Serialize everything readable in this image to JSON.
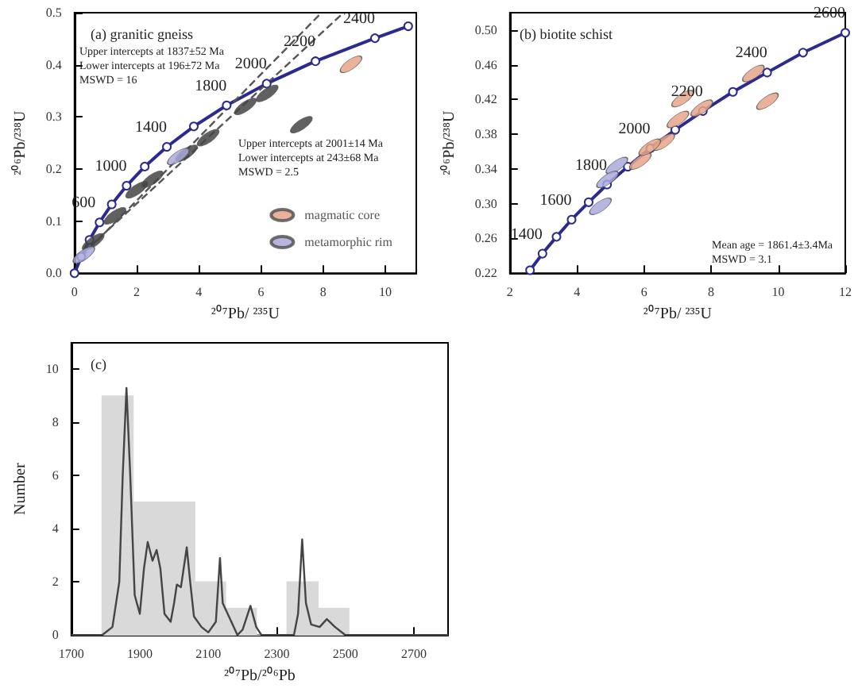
{
  "chart_data": [
    {
      "type": "line",
      "title": "(a) granitic gneiss",
      "xlabel": "²⁰⁷Pb/ ²³⁵U",
      "ylabel": "²⁰⁶Pb/²³⁸U",
      "xlim": [
        0,
        11
      ],
      "xticks": [
        0,
        2,
        4,
        6,
        8,
        10
      ],
      "ylim": [
        0,
        0.5
      ],
      "yticks": [
        {
          "value": 0,
          "label": "0.0"
        },
        0.1,
        0.2,
        0.3,
        0.4,
        0.5
      ],
      "legend": "bottom right",
      "annotations": [
        {
          "text": "600",
          "x": 0.8057,
          "y": 0.0975
        },
        {
          "text": "1000",
          "x": 1.677,
          "y": 0.1678
        },
        {
          "text": "1400",
          "x": 2.972,
          "y": 0.2425
        },
        {
          "text": "1800",
          "x": 4.897,
          "y": 0.3221
        },
        {
          "text": "2000",
          "x": 6.185,
          "y": 0.3638
        },
        {
          "text": "2200",
          "x": 7.755,
          "y": 0.4068
        },
        {
          "text": "2400",
          "x": 9.67,
          "y": 0.4511
        },
        "Upper intercepts at 1837±52 Ma\nLower intercepts at 196±72 Ma\nMSWD = 16",
        "Upper intercepts at 2001±14 Ma\nLower intercepts at 243±68 Ma\nMSWD = 2.5"
      ],
      "series": [
        {
          "type": "line",
          "color": "#2b2b8f",
          "marker": "circle",
          "x": [
            0,
            0.2177,
            0.4826,
            0.8057,
            1.198,
            1.677,
            2.26,
            2.972,
            3.84,
            4.897,
            6.185,
            7.755,
            9.67,
            10.74
          ],
          "values": [
            0,
            0.0315,
            0.064,
            0.0975,
            0.1321,
            0.1678,
            0.2046,
            0.2425,
            0.2817,
            0.3221,
            0.3638,
            0.4068,
            0.4511,
            0.474
          ]
        },
        {
          "type": "line",
          "color": "#555555",
          "marker": "none",
          "line_style": "dashed",
          "x": [
            0.213,
            5.13,
            7.95
          ],
          "values": [
            0.031,
            0.329,
            0.5
          ]
        },
        {
          "type": "line",
          "color": "#555555",
          "marker": "none",
          "line_style": "dashed",
          "x": [
            0.27,
            6.19,
            8.66
          ],
          "values": [
            0.0384,
            0.364,
            0.5
          ]
        },
        {
          "type": "scatter",
          "color": "#444444",
          "x": [
            0.6,
            1.3,
            2.0,
            2.5,
            3.6,
            4.3,
            5.5,
            6.2,
            7.3
          ],
          "values": [
            0.06,
            0.11,
            0.16,
            0.18,
            0.23,
            0.26,
            0.32,
            0.345,
            0.285
          ]
        },
        {
          "type": "scatter",
          "name": "magmatic core",
          "color": "#e8a58a",
          "x": [
            8.9
          ],
          "values": [
            0.401
          ]
        },
        {
          "type": "scatter",
          "name": "metamorphic rim",
          "color": "#a9a9dc",
          "x": [
            3.34,
            0.3
          ],
          "values": [
            0.224,
            0.035
          ]
        }
      ]
    },
    {
      "type": "line",
      "title": "(b) biotite schist",
      "xlabel": "²⁰⁷Pb/ ²³⁵U",
      "ylabel": "²⁰⁶Pb/²³⁸U",
      "xlim": [
        2,
        12
      ],
      "xticks": [
        2,
        4,
        6,
        8,
        10,
        12
      ],
      "ylim": [
        0.22,
        0.52
      ],
      "yticks": [
        0.22,
        0.26,
        {
          "value": 0.3,
          "label": "0.30"
        },
        0.34,
        0.38,
        0.42,
        0.46,
        {
          "value": 0.5,
          "label": "0.50"
        }
      ],
      "annotations": [
        {
          "text": "1400",
          "x": 2.972,
          "y": 0.2425
        },
        {
          "text": "1600",
          "x": 3.84,
          "y": 0.2817
        },
        {
          "text": "1800",
          "x": 4.897,
          "y": 0.3221
        },
        {
          "text": "2000",
          "x": 6.185,
          "y": 0.3638
        },
        {
          "text": "2200",
          "x": 7.755,
          "y": 0.4068
        },
        {
          "text": "2400",
          "x": 9.67,
          "y": 0.4511
        },
        {
          "text": "2600",
          "x": 12.0,
          "y": 0.4969
        },
        "Mean age = 1861.4±3.4Ma\nMSWD = 3.1"
      ],
      "series": [
        {
          "type": "line",
          "color": "#2b2b8f",
          "marker": "circle",
          "x": [
            2.601,
            2.972,
            3.39,
            3.84,
            4.349,
            4.897,
            5.515,
            6.185,
            6.93,
            7.755,
            8.65,
            9.67,
            10.74,
            12.0
          ],
          "values": [
            0.2234,
            0.2425,
            0.2619,
            0.2817,
            0.3017,
            0.3221,
            0.3427,
            0.3638,
            0.3851,
            0.4068,
            0.4288,
            0.4511,
            0.474,
            0.4969
          ]
        },
        {
          "type": "scatter",
          "color": "#e8a58a",
          "x": [
            9.68,
            7.15,
            7.72,
            6.59,
            5.89,
            6.17,
            9.26,
            7.01
          ],
          "values": [
            0.418,
            0.421,
            0.41,
            0.371,
            0.349,
            0.365,
            0.45,
            0.397
          ]
        },
        {
          "type": "scatter",
          "color": "#a9a9dc",
          "x": [
            4.7,
            5.19,
            4.91
          ],
          "values": [
            0.297,
            0.344,
            0.328
          ]
        }
      ]
    },
    {
      "type": "histogram",
      "title": "(c)",
      "xlabel": "²⁰⁷Pb/²⁰⁶Pb",
      "ylabel": "Number",
      "xlim": [
        1700,
        2800
      ],
      "xticks": [
        1700,
        1900,
        2100,
        2300,
        2500,
        2700
      ],
      "ylim": [
        0,
        11
      ],
      "yticks": [
        0,
        2,
        4,
        6,
        8,
        10
      ],
      "color": "#d9d9d9",
      "bins": [
        1790,
        1880,
        1970,
        2060,
        2150,
        2240,
        2330,
        2420,
        2510
      ],
      "values": [
        9,
        5,
        5,
        2,
        1,
        0,
        2,
        1
      ],
      "series": [
        {
          "type": "line",
          "color": "#444444",
          "marker": "none",
          "x": [
            1700,
            1790,
            1820,
            1840,
            1850,
            1861,
            1872,
            1885,
            1900,
            1912,
            1923,
            1937,
            1949,
            1960,
            1972,
            1990,
            2000,
            2008,
            2020,
            2037,
            2047,
            2058,
            2080,
            2100,
            2122,
            2134,
            2142,
            2160,
            2185,
            2200,
            2223,
            2240,
            2255,
            2350,
            2362,
            2374,
            2385,
            2400,
            2425,
            2446,
            2470,
            2500,
            2800
          ],
          "values": [
            0,
            0,
            0.3,
            2,
            6,
            9.3,
            6,
            1.5,
            0.8,
            2.5,
            3.5,
            2.8,
            3.2,
            2.5,
            0.8,
            0.5,
            1.2,
            1.9,
            1.8,
            3.3,
            2,
            0.7,
            0.3,
            0.1,
            0.5,
            2.9,
            1.2,
            0.7,
            0,
            0.2,
            1.1,
            0.3,
            0,
            0,
            0.8,
            3.6,
            1.2,
            0.4,
            0.3,
            0.6,
            0.3,
            0,
            0
          ]
        }
      ]
    }
  ]
}
